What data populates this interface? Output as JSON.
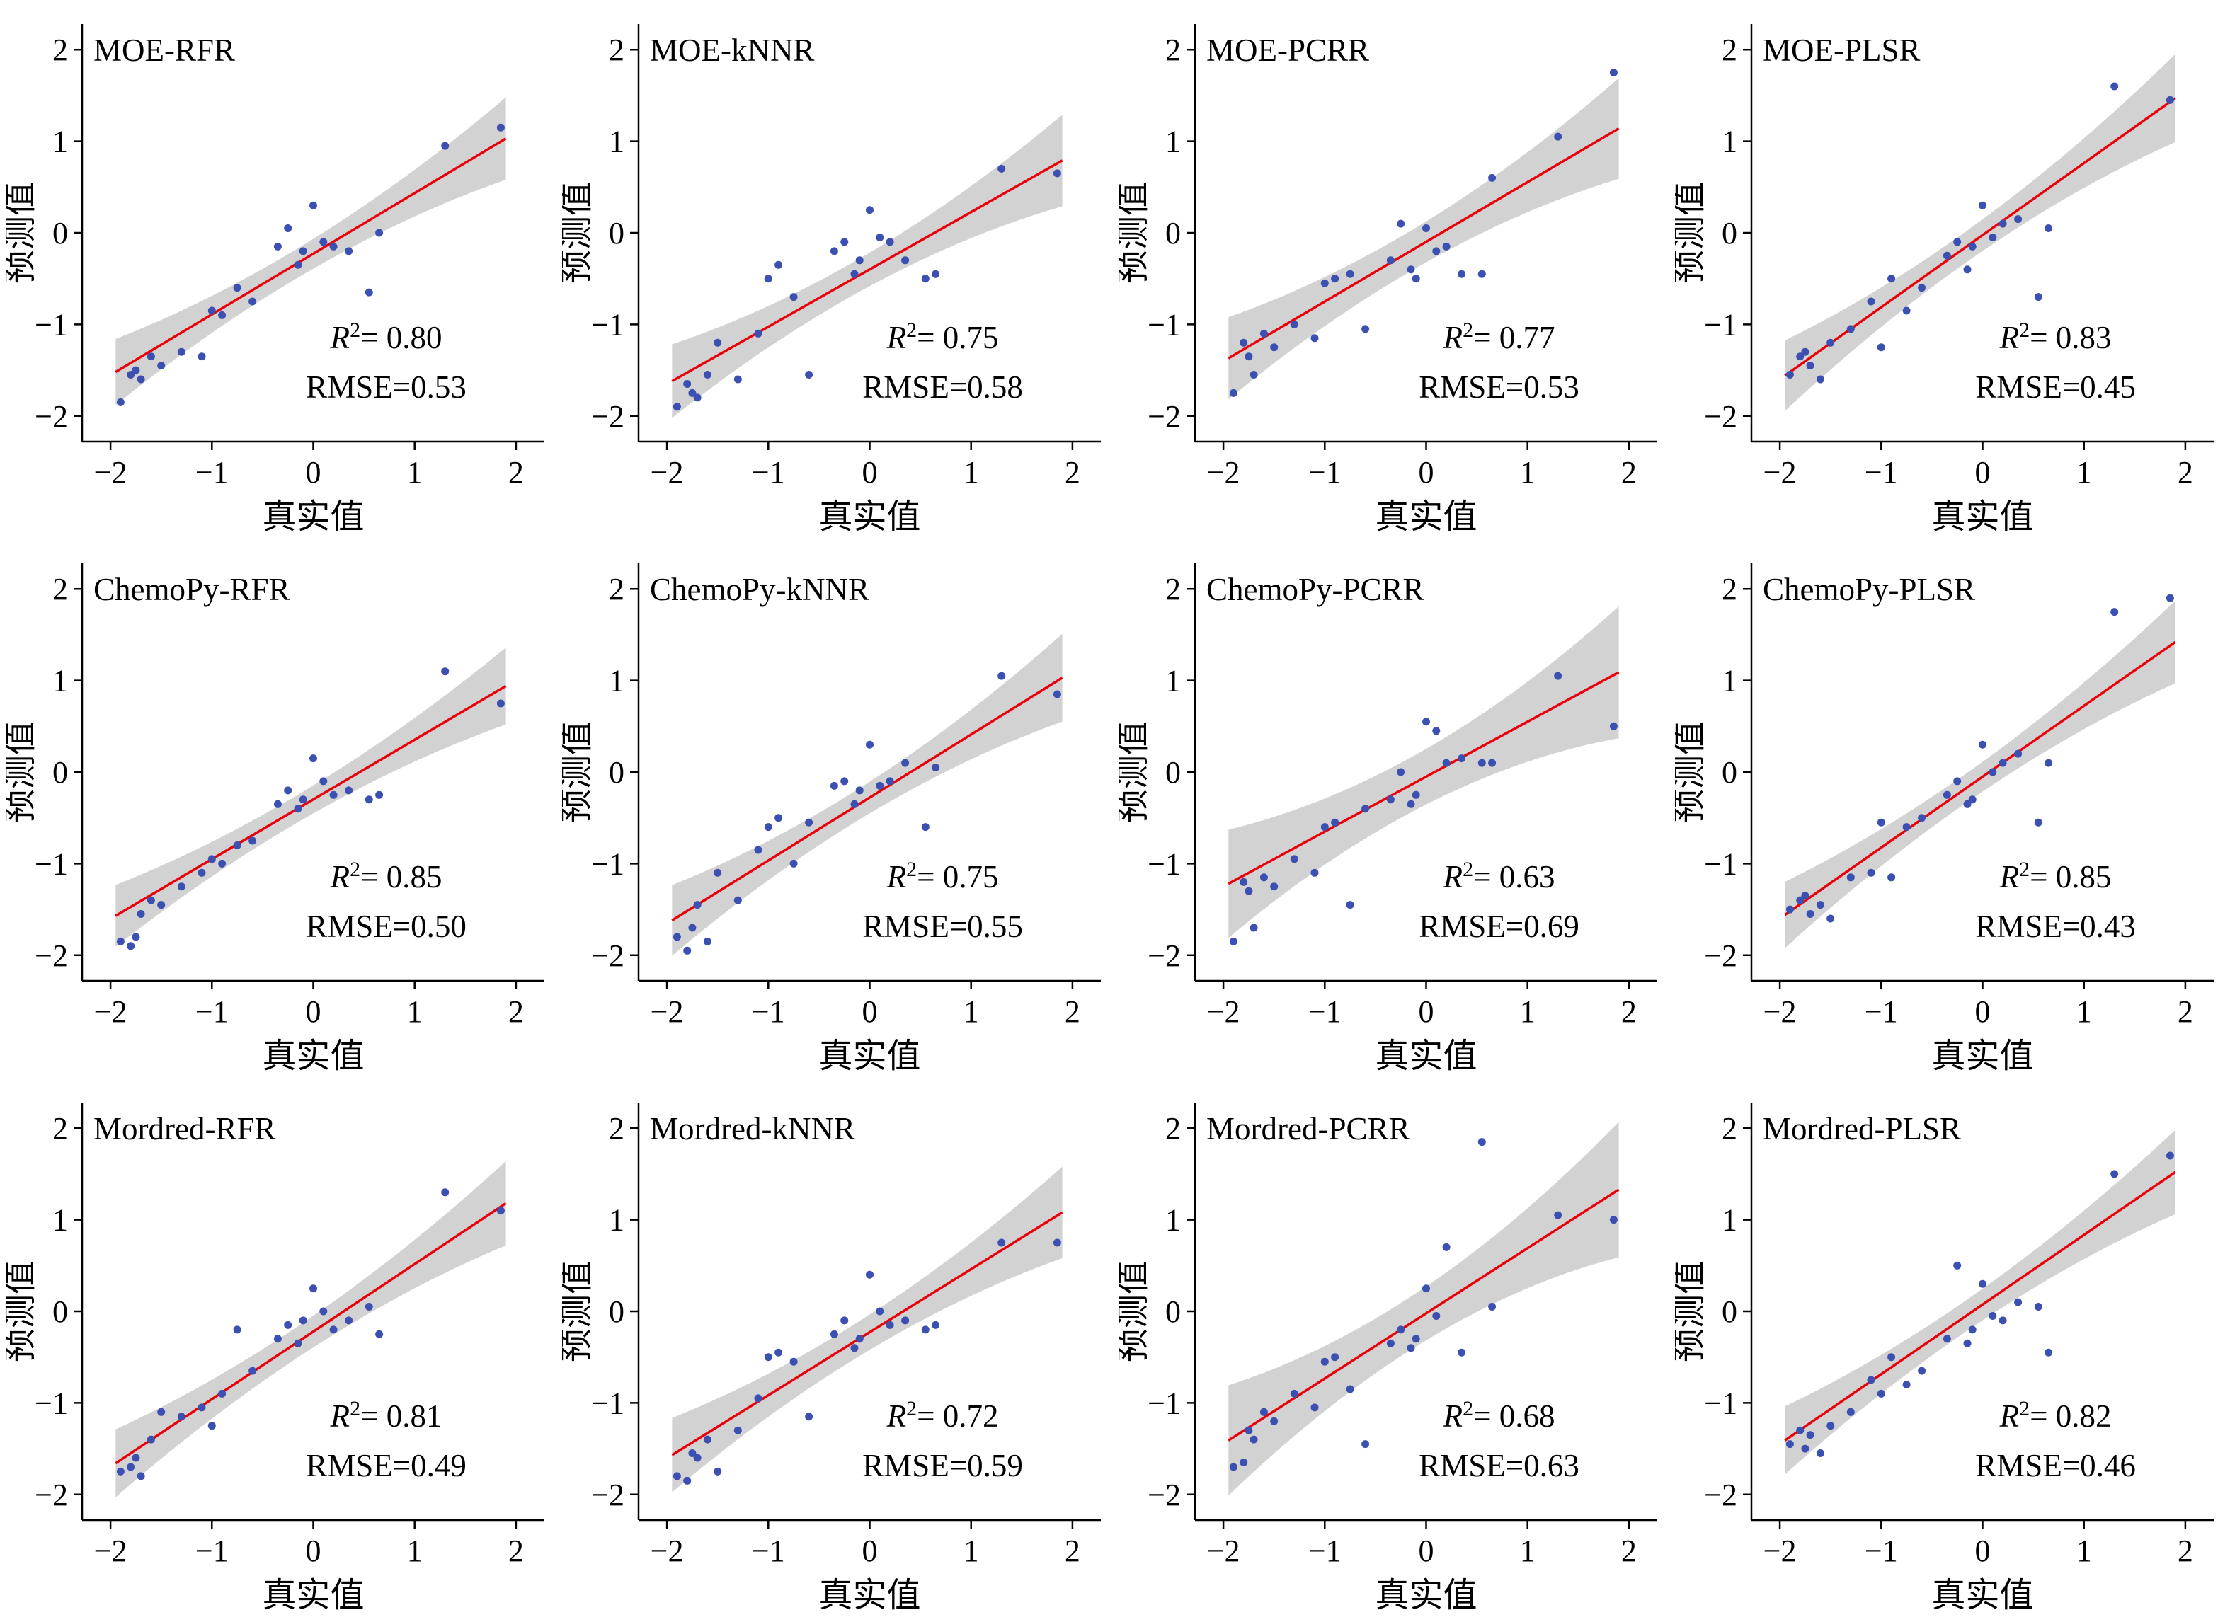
{
  "figure": {
    "background": "#ffffff",
    "colors": {
      "point": "#3c50b1",
      "fit_line": "#e8000b",
      "band": "#cdcdcd",
      "axis": "#000000",
      "text": "#000000"
    },
    "labels": {
      "r2_prefix": "R",
      "r2_sup": "2",
      "r2_eq": "= ",
      "rmse_prefix": "RMSE="
    }
  },
  "chart_data": {
    "type": "scatter",
    "grid": [
      3,
      4
    ],
    "xlabel": "真实值",
    "ylabel": "预测值",
    "xlim": [
      -2,
      2
    ],
    "ylim": [
      -2,
      2
    ],
    "ticks": [
      -2,
      -1,
      0,
      1,
      2
    ],
    "tick_labels": [
      "−2",
      "−1",
      "0",
      "1",
      "2"
    ],
    "legend": "none",
    "gridlines": false,
    "true_values": [
      -1.9,
      -1.8,
      -1.75,
      -1.7,
      -1.6,
      -1.5,
      -1.3,
      -1.1,
      -1.0,
      -0.9,
      -0.75,
      -0.6,
      -0.35,
      -0.25,
      -0.15,
      -0.1,
      0.0,
      0.1,
      0.2,
      0.35,
      0.55,
      0.65,
      1.3,
      1.85
    ],
    "charts": [
      {
        "title": "MOE-RFR",
        "r2": "0.80",
        "rmse": "0.53",
        "fit": {
          "x0": -1.95,
          "y0": -1.52,
          "x1": 1.9,
          "y1": 1.03
        },
        "band": {
          "xm": -0.2,
          "hw_min": 0.16,
          "hw_edge": 0.45
        },
        "pred_values": [
          -1.85,
          -1.55,
          -1.5,
          -1.6,
          -1.35,
          -1.45,
          -1.3,
          -1.35,
          -0.85,
          -0.9,
          -0.6,
          -0.75,
          -0.15,
          0.05,
          -0.35,
          -0.2,
          0.3,
          -0.1,
          -0.15,
          -0.2,
          -0.65,
          0.0,
          0.95,
          1.15
        ]
      },
      {
        "title": "MOE-kNNR",
        "r2": "0.75",
        "rmse": "0.58",
        "fit": {
          "x0": -1.95,
          "y0": -1.62,
          "x1": 1.9,
          "y1": 0.79
        },
        "band": {
          "xm": -0.2,
          "hw_min": 0.18,
          "hw_edge": 0.5
        },
        "pred_values": [
          -1.9,
          -1.65,
          -1.75,
          -1.8,
          -1.55,
          -1.2,
          -1.6,
          -1.1,
          -0.5,
          -0.35,
          -0.7,
          -1.55,
          -0.2,
          -0.1,
          -0.45,
          -0.3,
          0.25,
          -0.05,
          -0.1,
          -0.3,
          -0.5,
          -0.45,
          0.7,
          0.65
        ]
      },
      {
        "title": "MOE-PCRR",
        "r2": "0.77",
        "rmse": "0.53",
        "fit": {
          "x0": -1.95,
          "y0": -1.37,
          "x1": 1.9,
          "y1": 1.14
        },
        "band": {
          "xm": -0.2,
          "hw_min": 0.22,
          "hw_edge": 0.55
        },
        "pred_values": [
          -1.75,
          -1.2,
          -1.35,
          -1.55,
          -1.1,
          -1.25,
          -1.0,
          -1.15,
          -0.55,
          -0.5,
          -0.45,
          -1.05,
          -0.3,
          0.1,
          -0.4,
          -0.5,
          0.05,
          -0.2,
          -0.15,
          -0.45,
          -0.45,
          0.6,
          1.05,
          1.75
        ]
      },
      {
        "title": "MOE-PLSR",
        "r2": "0.83",
        "rmse": "0.45",
        "fit": {
          "x0": -1.95,
          "y0": -1.56,
          "x1": 1.9,
          "y1": 1.47
        },
        "band": {
          "xm": -0.2,
          "hw_min": 0.17,
          "hw_edge": 0.48
        },
        "pred_values": [
          -1.55,
          -1.35,
          -1.3,
          -1.45,
          -1.6,
          -1.2,
          -1.05,
          -0.75,
          -1.25,
          -0.5,
          -0.85,
          -0.6,
          -0.25,
          -0.1,
          -0.4,
          -0.15,
          0.3,
          -0.05,
          0.1,
          0.15,
          -0.7,
          0.05,
          1.6,
          1.45
        ]
      },
      {
        "title": "ChemoPy-RFR",
        "r2": "0.85",
        "rmse": "0.50",
        "fit": {
          "x0": -1.95,
          "y0": -1.57,
          "x1": 1.9,
          "y1": 0.94
        },
        "band": {
          "xm": -0.2,
          "hw_min": 0.15,
          "hw_edge": 0.42
        },
        "pred_values": [
          -1.85,
          -1.9,
          -1.8,
          -1.55,
          -1.4,
          -1.45,
          -1.25,
          -1.1,
          -0.95,
          -1.0,
          -0.8,
          -0.75,
          -0.35,
          -0.2,
          -0.4,
          -0.3,
          0.15,
          -0.1,
          -0.25,
          -0.2,
          -0.3,
          -0.25,
          1.1,
          0.75
        ]
      },
      {
        "title": "ChemoPy-kNNR",
        "r2": "0.75",
        "rmse": "0.55",
        "fit": {
          "x0": -1.95,
          "y0": -1.62,
          "x1": 1.9,
          "y1": 1.03
        },
        "band": {
          "xm": -0.2,
          "hw_min": 0.17,
          "hw_edge": 0.48
        },
        "pred_values": [
          -1.8,
          -1.95,
          -1.7,
          -1.45,
          -1.85,
          -1.1,
          -1.4,
          -0.85,
          -0.6,
          -0.5,
          -1.0,
          -0.55,
          -0.15,
          -0.1,
          -0.35,
          -0.2,
          0.3,
          -0.15,
          -0.1,
          0.1,
          -0.6,
          0.05,
          1.05,
          0.85
        ]
      },
      {
        "title": "ChemoPy-PCRR",
        "r2": "0.63",
        "rmse": "0.69",
        "fit": {
          "x0": -1.95,
          "y0": -1.22,
          "x1": 1.9,
          "y1": 1.09
        },
        "band": {
          "xm": -0.2,
          "hw_min": 0.3,
          "hw_edge": 0.72
        },
        "pred_values": [
          -1.85,
          -1.2,
          -1.3,
          -1.7,
          -1.15,
          -1.25,
          -0.95,
          -1.1,
          -0.6,
          -0.55,
          -1.45,
          -0.4,
          -0.3,
          0.0,
          -0.35,
          -0.25,
          0.55,
          0.45,
          0.1,
          0.15,
          0.1,
          0.1,
          1.05,
          0.5
        ]
      },
      {
        "title": "ChemoPy-PLSR",
        "r2": "0.85",
        "rmse": "0.43",
        "fit": {
          "x0": -1.95,
          "y0": -1.56,
          "x1": 1.9,
          "y1": 1.42
        },
        "band": {
          "xm": -0.2,
          "hw_min": 0.16,
          "hw_edge": 0.45
        },
        "pred_values": [
          -1.5,
          -1.4,
          -1.35,
          -1.55,
          -1.45,
          -1.6,
          -1.15,
          -1.1,
          -0.55,
          -1.15,
          -0.6,
          -0.5,
          -0.25,
          -0.1,
          -0.35,
          -0.3,
          0.3,
          0.0,
          0.1,
          0.2,
          -0.55,
          0.1,
          1.75,
          1.9
        ]
      },
      {
        "title": "Mordred-RFR",
        "r2": "0.81",
        "rmse": "0.49",
        "fit": {
          "x0": -1.95,
          "y0": -1.66,
          "x1": 1.9,
          "y1": 1.18
        },
        "band": {
          "xm": -0.2,
          "hw_min": 0.17,
          "hw_edge": 0.46
        },
        "pred_values": [
          -1.75,
          -1.7,
          -1.6,
          -1.8,
          -1.4,
          -1.1,
          -1.15,
          -1.05,
          -1.25,
          -0.9,
          -0.2,
          -0.65,
          -0.3,
          -0.15,
          -0.35,
          -0.1,
          0.25,
          0.0,
          -0.2,
          -0.1,
          0.05,
          -0.25,
          1.3,
          1.1
        ]
      },
      {
        "title": "Mordred-kNNR",
        "r2": "0.72",
        "rmse": "0.59",
        "fit": {
          "x0": -1.95,
          "y0": -1.57,
          "x1": 1.9,
          "y1": 1.08
        },
        "band": {
          "xm": -0.2,
          "hw_min": 0.19,
          "hw_edge": 0.5
        },
        "pred_values": [
          -1.8,
          -1.85,
          -1.55,
          -1.6,
          -1.4,
          -1.75,
          -1.3,
          -0.95,
          -0.5,
          -0.45,
          -0.55,
          -1.15,
          -0.25,
          -0.1,
          -0.4,
          -0.3,
          0.4,
          0.0,
          -0.15,
          -0.1,
          -0.2,
          -0.15,
          0.75,
          0.75
        ]
      },
      {
        "title": "Mordred-PCRR",
        "r2": "0.68",
        "rmse": "0.63",
        "fit": {
          "x0": -1.95,
          "y0": -1.41,
          "x1": 1.9,
          "y1": 1.33
        },
        "band": {
          "xm": -0.2,
          "hw_min": 0.29,
          "hw_edge": 0.74
        },
        "pred_values": [
          -1.7,
          -1.65,
          -1.3,
          -1.4,
          -1.1,
          -1.2,
          -0.9,
          -1.05,
          -0.55,
          -0.5,
          -0.85,
          -1.45,
          -0.35,
          -0.2,
          -0.4,
          -0.3,
          0.25,
          -0.05,
          0.7,
          -0.45,
          1.85,
          0.05,
          1.05,
          1.0
        ]
      },
      {
        "title": "Mordred-PLSR",
        "r2": "0.82",
        "rmse": "0.46",
        "fit": {
          "x0": -1.95,
          "y0": -1.41,
          "x1": 1.9,
          "y1": 1.52
        },
        "band": {
          "xm": -0.2,
          "hw_min": 0.17,
          "hw_edge": 0.46
        },
        "pred_values": [
          -1.45,
          -1.3,
          -1.5,
          -1.35,
          -1.55,
          -1.25,
          -1.1,
          -0.75,
          -0.9,
          -0.5,
          -0.8,
          -0.65,
          -0.3,
          0.5,
          -0.35,
          -0.2,
          0.3,
          -0.05,
          -0.1,
          0.1,
          0.05,
          -0.45,
          1.5,
          1.7
        ]
      }
    ]
  }
}
